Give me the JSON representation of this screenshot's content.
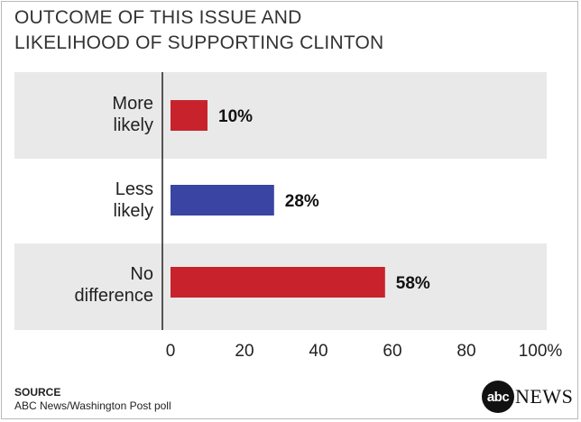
{
  "chart_data": {
    "type": "bar",
    "orientation": "horizontal",
    "title_lines": [
      "OUTCOME OF THIS ISSUE AND",
      "LIKELIHOOD OF SUPPORTING CLINTON"
    ],
    "categories": [
      {
        "lines": [
          "More",
          "likely"
        ]
      },
      {
        "lines": [
          "Less",
          "likely"
        ]
      },
      {
        "lines": [
          "No",
          "difference"
        ]
      }
    ],
    "values": [
      10,
      28,
      58
    ],
    "value_labels": [
      "10%",
      "28%",
      "58%"
    ],
    "bar_colors": [
      "#c8232c",
      "#3a44a3",
      "#c8232c"
    ],
    "xlim": [
      0,
      100
    ],
    "x_ticks": [
      "0",
      "20",
      "40",
      "60",
      "80",
      "100%"
    ],
    "grid": false,
    "band_shading": [
      "#e9e9e9",
      "none",
      "#e9e9e9"
    ]
  },
  "footer": {
    "source_heading": "SOURCE",
    "source_text": "ABC News/Washington Post poll",
    "logo_mark": "abc",
    "logo_word": "NEWS"
  }
}
